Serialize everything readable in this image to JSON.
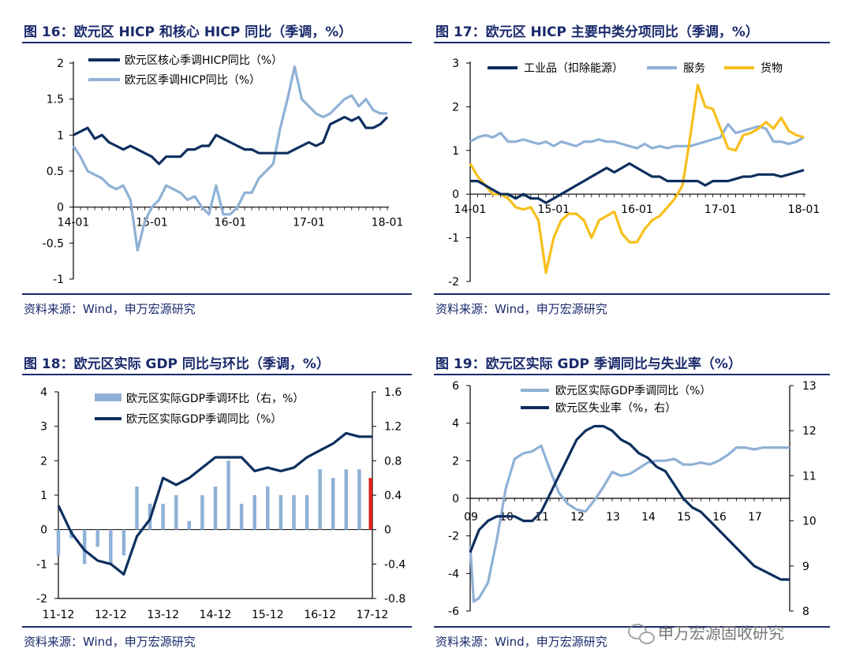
{
  "source": "资料来源：Wind，申万宏源研究",
  "watermark": "申万宏源固收研究",
  "colors": {
    "navy": "#0d2f5e",
    "light": "#8fb1d6",
    "gold": "#f7bf1a",
    "red": "#e0201b",
    "title": "#1a2a6c"
  },
  "chart_data": [
    {
      "type": "line",
      "title": "图 16：欧元区 HICP 和核心 HICP 同比（季调，%）",
      "x_ticks": [
        "14-01",
        "15-01",
        "16-01",
        "17-01",
        "18-01"
      ],
      "ylim": [
        -1,
        2
      ],
      "y_ticks": [
        "2",
        "1.5",
        "1",
        "0.5",
        "0",
        "-0.5",
        "-1"
      ],
      "series": [
        {
          "name": "欧元区核心季调HICP同比（%）",
          "color": "navy",
          "values": [
            1.0,
            1.05,
            1.1,
            0.95,
            1.0,
            0.9,
            0.85,
            0.8,
            0.85,
            0.8,
            0.75,
            0.7,
            0.6,
            0.7,
            0.7,
            0.7,
            0.8,
            0.8,
            0.85,
            0.85,
            1.0,
            0.95,
            0.9,
            0.85,
            0.8,
            0.8,
            0.75,
            0.75,
            0.75,
            0.75,
            0.75,
            0.8,
            0.85,
            0.9,
            0.85,
            0.9,
            1.15,
            1.2,
            1.25,
            1.2,
            1.25,
            1.1,
            1.1,
            1.15,
            1.25
          ]
        },
        {
          "name": "欧元区季调HICP同比（%）",
          "color": "light",
          "values": [
            0.85,
            0.7,
            0.5,
            0.45,
            0.4,
            0.3,
            0.25,
            0.3,
            0.1,
            -0.6,
            -0.2,
            0.0,
            0.1,
            0.3,
            0.25,
            0.2,
            0.1,
            0.15,
            0.0,
            -0.1,
            0.3,
            -0.1,
            -0.1,
            0.0,
            0.2,
            0.2,
            0.4,
            0.5,
            0.6,
            1.1,
            1.5,
            1.95,
            1.5,
            1.4,
            1.3,
            1.25,
            1.3,
            1.4,
            1.5,
            1.55,
            1.4,
            1.5,
            1.35,
            1.3,
            1.3
          ]
        }
      ]
    },
    {
      "type": "line",
      "title": "图 17：欧元区 HICP 主要中类分项同比（季调，%）",
      "x_ticks": [
        "14-01",
        "15-01",
        "16-01",
        "17-01",
        "18-01"
      ],
      "ylim": [
        -2,
        3
      ],
      "y_ticks": [
        "3",
        "2",
        "1",
        "0",
        "-1",
        "-2"
      ],
      "series": [
        {
          "name": "工业品（扣除能源）",
          "color": "navy",
          "values": [
            0.3,
            0.3,
            0.2,
            0.1,
            0.0,
            0.0,
            -0.1,
            0.0,
            -0.1,
            -0.1,
            -0.2,
            -0.1,
            0.0,
            0.1,
            0.2,
            0.3,
            0.4,
            0.5,
            0.6,
            0.5,
            0.6,
            0.7,
            0.6,
            0.5,
            0.4,
            0.4,
            0.3,
            0.3,
            0.3,
            0.3,
            0.3,
            0.2,
            0.3,
            0.3,
            0.3,
            0.35,
            0.4,
            0.4,
            0.45,
            0.45,
            0.45,
            0.4,
            0.45,
            0.5,
            0.55
          ]
        },
        {
          "name": "服务",
          "color": "light",
          "values": [
            1.2,
            1.3,
            1.35,
            1.3,
            1.4,
            1.2,
            1.2,
            1.25,
            1.2,
            1.15,
            1.2,
            1.1,
            1.2,
            1.15,
            1.1,
            1.2,
            1.2,
            1.25,
            1.2,
            1.2,
            1.15,
            1.1,
            1.05,
            1.15,
            1.05,
            1.1,
            1.05,
            1.1,
            1.1,
            1.1,
            1.15,
            1.2,
            1.25,
            1.3,
            1.6,
            1.4,
            1.45,
            1.5,
            1.55,
            1.5,
            1.2,
            1.2,
            1.15,
            1.2,
            1.3
          ]
        },
        {
          "name": "货物",
          "color": "gold",
          "values": [
            0.7,
            0.4,
            0.2,
            0.0,
            0.0,
            -0.1,
            -0.3,
            -0.35,
            -0.3,
            -0.6,
            -1.8,
            -1.0,
            -0.6,
            -0.45,
            -0.45,
            -0.6,
            -1.0,
            -0.6,
            -0.5,
            -0.4,
            -0.9,
            -1.1,
            -1.1,
            -0.8,
            -0.6,
            -0.5,
            -0.3,
            -0.1,
            0.2,
            1.3,
            2.5,
            2.0,
            1.95,
            1.5,
            1.05,
            1.0,
            1.35,
            1.4,
            1.5,
            1.65,
            1.5,
            1.75,
            1.45,
            1.35,
            1.3
          ]
        }
      ]
    },
    {
      "type": "bar+line",
      "title": "图 18：欧元区实际 GDP 同比与环比（季调，%）",
      "x_ticks": [
        "11-12",
        "12-12",
        "13-12",
        "14-12",
        "15-12",
        "16-12",
        "17-12"
      ],
      "ylim_left": [
        -2,
        4
      ],
      "ylim_right": [
        -0.8,
        1.6
      ],
      "y_ticks_left": [
        "4",
        "3",
        "2",
        "1",
        "0",
        "-1",
        "-2"
      ],
      "y_ticks_right": [
        "1.6",
        "1.2",
        "0.8",
        "0.4",
        "0",
        "-0.4",
        "-0.8"
      ],
      "series": [
        {
          "name": "欧元区实际GDP季调环比（右，%）",
          "color": "light",
          "type": "bar",
          "values": [
            -0.3,
            -0.1,
            -0.4,
            -0.2,
            -0.4,
            -0.3,
            0.5,
            0.3,
            0.3,
            0.4,
            0.1,
            0.4,
            0.5,
            0.8,
            0.3,
            0.4,
            0.5,
            0.4,
            0.4,
            0.4,
            0.7,
            0.6,
            0.7,
            0.7,
            0.6
          ]
        },
        {
          "name": "欧元区实际GDP季调同比（%）",
          "color": "navy",
          "type": "line",
          "values": [
            0.7,
            -0.1,
            -0.6,
            -0.9,
            -1.0,
            -1.3,
            -0.2,
            0.3,
            1.5,
            1.3,
            1.5,
            1.8,
            2.1,
            2.1,
            2.1,
            1.7,
            1.8,
            1.7,
            1.8,
            2.1,
            2.3,
            2.5,
            2.8,
            2.7,
            2.7
          ]
        }
      ],
      "highlight_last_bar_color": "red"
    },
    {
      "type": "line",
      "title": "图 19：欧元区实际 GDP 季调同比与失业率（%）",
      "x_ticks": [
        "09",
        "10",
        "11",
        "12",
        "13",
        "14",
        "15",
        "16",
        "17"
      ],
      "ylim_left": [
        -6,
        6
      ],
      "ylim_right": [
        8,
        13
      ],
      "y_ticks_left": [
        "6",
        "4",
        "2",
        "0",
        "-2",
        "-4",
        "-6"
      ],
      "y_ticks_right": [
        "13",
        "12",
        "11",
        "10",
        "9",
        "8"
      ],
      "series": [
        {
          "name": "欧元区实际GDP季调同比（%）",
          "color": "light",
          "axis": "left",
          "x": [
            0,
            0.1,
            0.25,
            0.5,
            0.75,
            1.0,
            1.25,
            1.5,
            1.75,
            2.0,
            2.25,
            2.5,
            2.75,
            3.0,
            3.25,
            3.5,
            3.75,
            4.0,
            4.25,
            4.5,
            4.75,
            5.0,
            5.25,
            5.5,
            5.75,
            6.0,
            6.25,
            6.5,
            6.75,
            7.0,
            7.25,
            7.5,
            7.75,
            8.0,
            8.25,
            8.5,
            8.75,
            9.0
          ],
          "values": [
            -2.5,
            -5.5,
            -5.3,
            -4.5,
            -2.2,
            0.5,
            2.1,
            2.4,
            2.5,
            2.8,
            1.5,
            0.3,
            -0.3,
            -0.6,
            -0.7,
            -0.1,
            0.6,
            1.4,
            1.2,
            1.3,
            1.6,
            1.9,
            2.0,
            2.0,
            2.1,
            1.8,
            1.8,
            1.9,
            1.8,
            2.0,
            2.3,
            2.7,
            2.7,
            2.6,
            2.7,
            2.7,
            2.7,
            2.7
          ]
        },
        {
          "name": "欧元区失业率（%，右）",
          "color": "navy",
          "axis": "right",
          "x": [
            0,
            0.25,
            0.5,
            0.75,
            1.0,
            1.25,
            1.5,
            1.75,
            2.0,
            2.25,
            2.5,
            2.75,
            3.0,
            3.25,
            3.5,
            3.75,
            4.0,
            4.25,
            4.5,
            4.75,
            5.0,
            5.25,
            5.5,
            5.75,
            6.0,
            6.25,
            6.5,
            6.75,
            7.0,
            7.25,
            7.5,
            7.75,
            8.0,
            8.25,
            8.5,
            8.75,
            9.0
          ],
          "values": [
            9.3,
            9.8,
            10.0,
            10.1,
            10.1,
            10.1,
            10.0,
            10.0,
            10.2,
            10.6,
            11.0,
            11.4,
            11.8,
            12.0,
            12.1,
            12.1,
            12.0,
            11.8,
            11.7,
            11.5,
            11.4,
            11.2,
            11.1,
            10.8,
            10.5,
            10.3,
            10.2,
            10.0,
            9.8,
            9.6,
            9.4,
            9.2,
            9.0,
            8.9,
            8.8,
            8.7,
            8.7
          ]
        }
      ]
    }
  ]
}
